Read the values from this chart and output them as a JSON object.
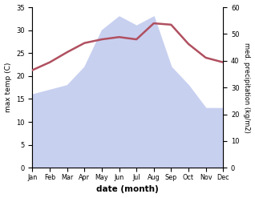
{
  "months": [
    "Jan",
    "Feb",
    "Mar",
    "Apr",
    "May",
    "Jun",
    "Jul",
    "Aug",
    "Sep",
    "Oct",
    "Nov",
    "Dec"
  ],
  "temperature": [
    21.3,
    23.0,
    25.2,
    27.2,
    28.0,
    28.5,
    28.0,
    31.5,
    31.2,
    27.0,
    24.0,
    23.0
  ],
  "rainfall": [
    16.0,
    17.0,
    18.0,
    22.0,
    30.0,
    33.0,
    31.0,
    33.0,
    22.0,
    18.0,
    13.0,
    13.0
  ],
  "temp_ylim": [
    0,
    35
  ],
  "rain_ylim": [
    0,
    60
  ],
  "temp_color": "#b05060",
  "rain_fill_color": "#c8d0f0",
  "xlabel": "date (month)",
  "ylabel_left": "max temp (C)",
  "ylabel_right": "med. precipitation (kg/m2)",
  "temp_yticks": [
    0,
    5,
    10,
    15,
    20,
    25,
    30,
    35
  ],
  "rain_yticks": [
    0,
    10,
    20,
    30,
    40,
    50,
    60
  ],
  "linewidth": 1.8,
  "bg_color": "#ffffff"
}
